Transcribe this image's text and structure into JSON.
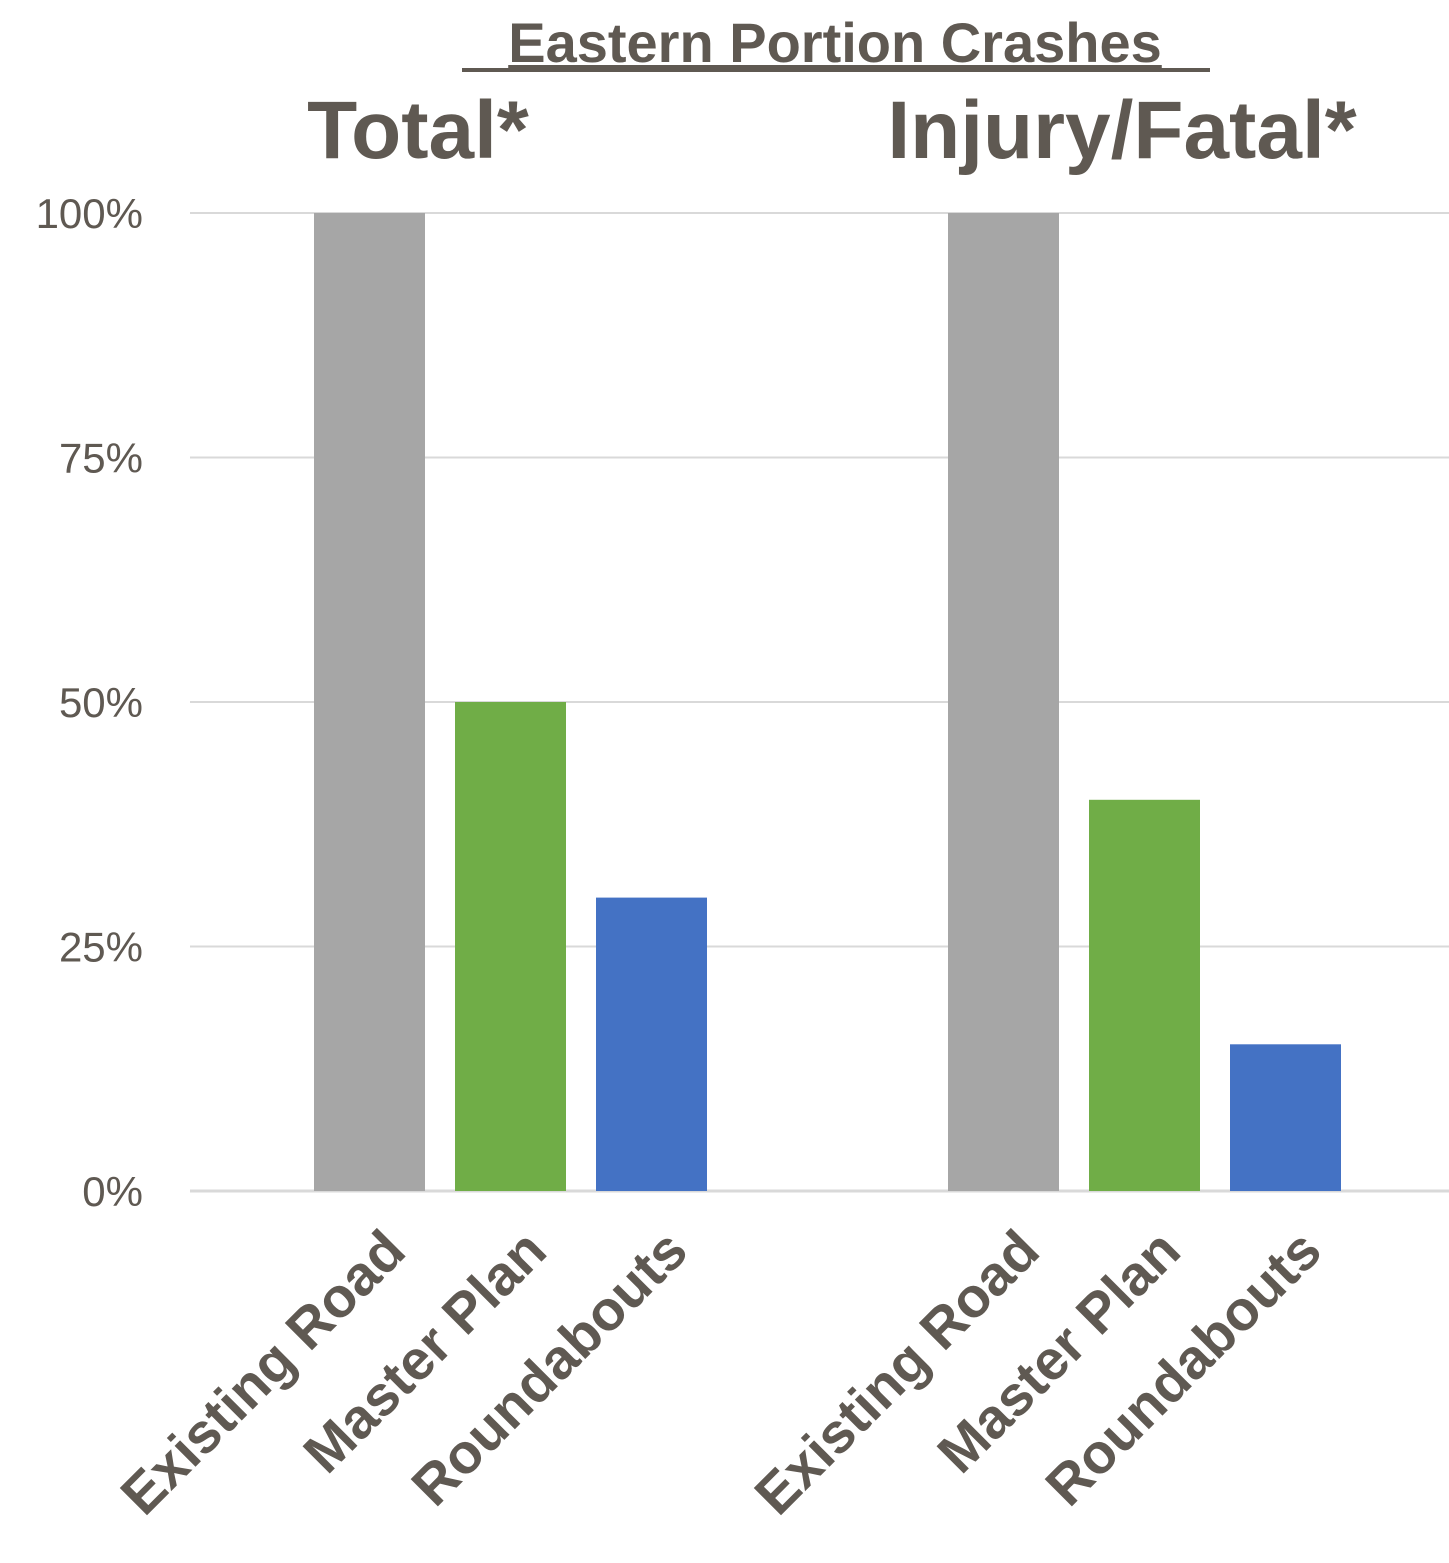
{
  "chart_data": {
    "type": "bar",
    "title": "Eastern Portion Crashes",
    "groups": [
      {
        "label": "Total*",
        "categories": [
          "Existing Road",
          "Master Plan",
          "Roundabouts"
        ],
        "values": [
          100,
          50,
          30
        ]
      },
      {
        "label": "Injury/Fatal*",
        "categories": [
          "Existing Road",
          "Master Plan",
          "Roundabouts"
        ],
        "values": [
          100,
          40,
          15
        ]
      }
    ],
    "bar_colors": [
      "#a6a6a6",
      "#70ad47",
      "#4472c4"
    ],
    "y_ticks": [
      "0%",
      "25%",
      "50%",
      "75%",
      "100%"
    ],
    "ylim": [
      0,
      100
    ],
    "grid": true,
    "legend": "none"
  }
}
